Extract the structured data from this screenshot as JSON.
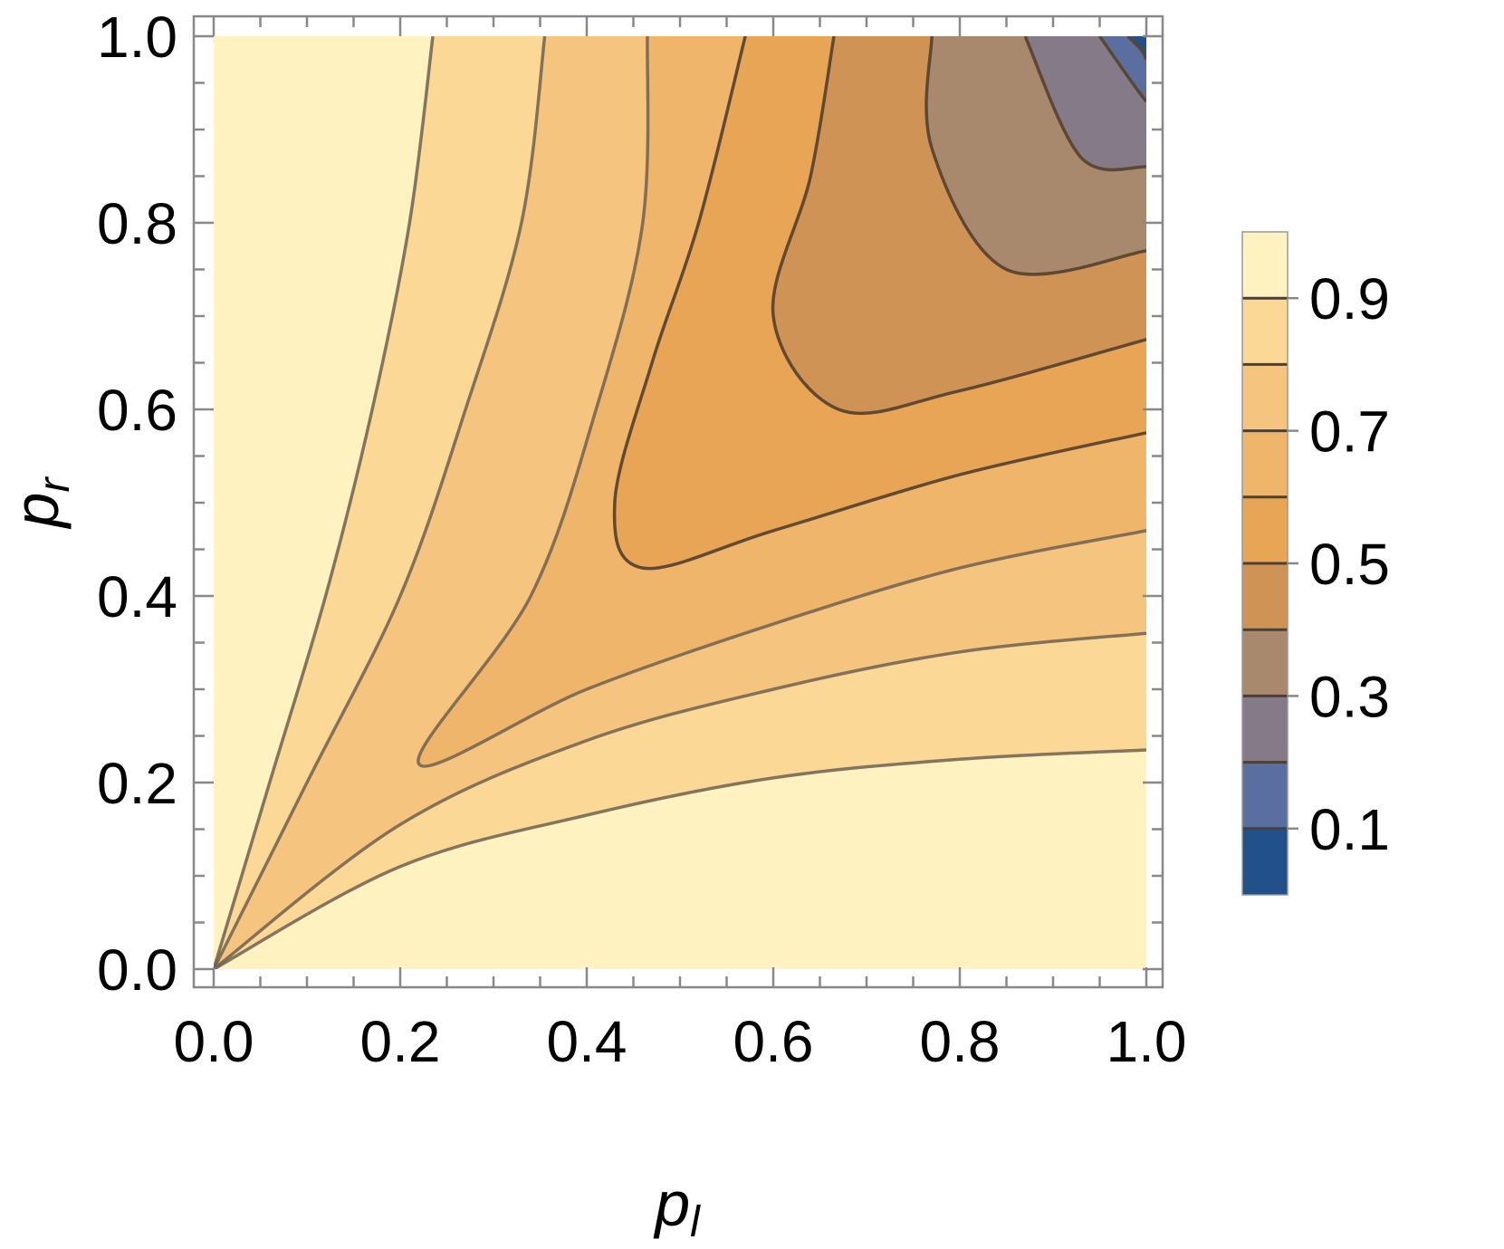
{
  "chart_data": {
    "type": "contour",
    "xlabel_main": "p",
    "xlabel_sub": "l",
    "ylabel_main": "p",
    "ylabel_sub": "r",
    "xlim": [
      0,
      1
    ],
    "ylim": [
      0,
      1
    ],
    "x_ticks": [
      "0.0",
      "0.2",
      "0.4",
      "0.6",
      "0.8",
      "1.0"
    ],
    "y_ticks": [
      "0.0",
      "0.2",
      "0.4",
      "0.6",
      "0.8",
      "1.0"
    ],
    "legend_labels": [
      "0.9",
      "0.7",
      "0.5",
      "0.3",
      "0.1"
    ],
    "contour_levels": [
      0.9,
      0.8,
      0.7,
      0.6,
      0.5,
      0.4,
      0.3,
      0.2,
      0.1
    ],
    "band_colors": [
      "#fef2c0",
      "#fbd896",
      "#f5c47e",
      "#efb56a",
      "#e8a555",
      "#d09356",
      "#a8896e",
      "#847a88",
      "#5a6ea0",
      "#22508a"
    ],
    "contours": [
      {
        "level": 0.9,
        "left": [
          [
            0,
            0
          ],
          [
            0.06,
            0.2
          ],
          [
            0.12,
            0.4
          ],
          [
            0.17,
            0.6
          ],
          [
            0.21,
            0.8
          ],
          [
            0.235,
            1.0
          ]
        ],
        "right": [
          [
            0,
            0
          ],
          [
            0.2,
            0.11
          ],
          [
            0.4,
            0.165
          ],
          [
            0.6,
            0.205
          ],
          [
            0.8,
            0.225
          ],
          [
            1.0,
            0.235
          ]
        ]
      },
      {
        "level": 0.8,
        "left": [
          [
            0,
            0
          ],
          [
            0.1,
            0.2
          ],
          [
            0.2,
            0.4
          ],
          [
            0.27,
            0.6
          ],
          [
            0.33,
            0.8
          ],
          [
            0.355,
            1.0
          ]
        ],
        "right": [
          [
            0,
            0
          ],
          [
            0.2,
            0.155
          ],
          [
            0.4,
            0.245
          ],
          [
            0.6,
            0.3
          ],
          [
            0.8,
            0.34
          ],
          [
            1.0,
            0.36
          ]
        ]
      },
      {
        "level": 0.7,
        "vertex": [
          0.22,
          0.22
        ],
        "left": [
          [
            0.34,
            0.4
          ],
          [
            0.41,
            0.6
          ],
          [
            0.46,
            0.8
          ],
          [
            0.465,
            1.0
          ]
        ],
        "right": [
          [
            0.4,
            0.3
          ],
          [
            0.6,
            0.37
          ],
          [
            0.8,
            0.43
          ],
          [
            1.0,
            0.47
          ]
        ]
      },
      {
        "level": 0.6,
        "vertex": [
          0.46,
          0.43
        ],
        "left": [
          [
            0.43,
            0.5
          ],
          [
            0.47,
            0.65
          ],
          [
            0.52,
            0.8
          ],
          [
            0.57,
            1.0
          ]
        ],
        "right": [
          [
            0.6,
            0.47
          ],
          [
            0.8,
            0.53
          ],
          [
            1.0,
            0.575
          ]
        ]
      },
      {
        "level": 0.5,
        "vertex": [
          0.67,
          0.6
        ],
        "left": [
          [
            0.6,
            0.7
          ],
          [
            0.64,
            0.85
          ],
          [
            0.665,
            1.0
          ]
        ],
        "right": [
          [
            0.8,
            0.62
          ],
          [
            1.0,
            0.675
          ]
        ]
      },
      {
        "level": 0.4,
        "vertex": [
          0.85,
          0.75
        ],
        "left": [
          [
            0.77,
            0.88
          ],
          [
            0.77,
            1.0
          ]
        ],
        "right": [
          [
            1.0,
            0.77
          ]
        ]
      },
      {
        "level": 0.3,
        "vertex": [
          0.93,
          0.87
        ],
        "left": [
          [
            0.87,
            1.0
          ]
        ],
        "right": [
          [
            1.0,
            0.86
          ]
        ]
      },
      {
        "level": 0.2,
        "vertex": [
          0.985,
          0.95
        ],
        "left": [
          [
            0.95,
            1.0
          ]
        ],
        "right": [
          [
            1.0,
            0.93
          ]
        ]
      },
      {
        "level": 0.1,
        "vertex": [
          0.995,
          0.985
        ],
        "left": [
          [
            0.98,
            1.0
          ]
        ],
        "right": [
          [
            1.0,
            0.975
          ]
        ]
      }
    ]
  }
}
